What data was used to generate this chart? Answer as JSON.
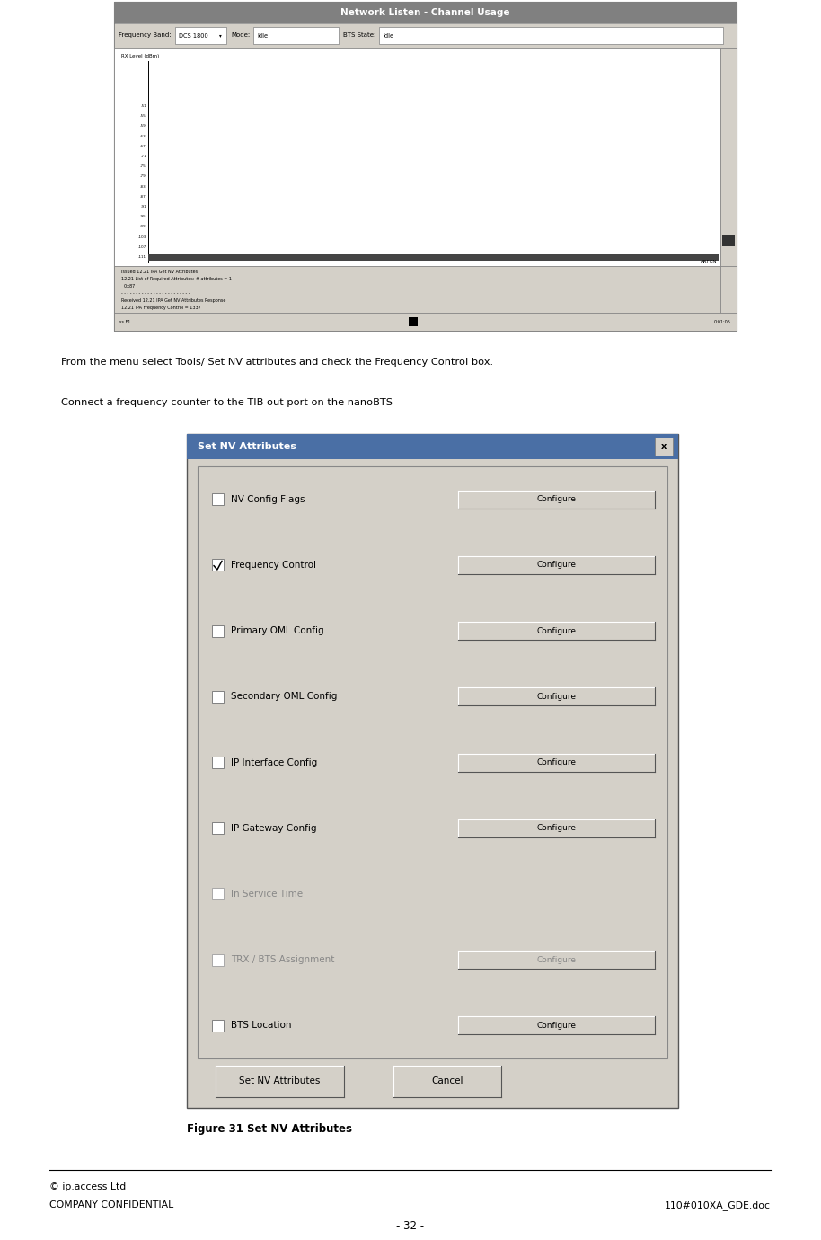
{
  "page_width": 9.14,
  "page_height": 13.8,
  "bg_color": "#ffffff",
  "para1": "From the menu select Tools/ Set NV attributes and check the Frequency Control box.",
  "para2": "Connect a frequency counter to the TIB out port on the nanoBTS",
  "figure_caption": "Figure 31 Set NV Attributes",
  "footer_left1": "© ip.access Ltd",
  "footer_left2": "COMPANY CONFIDENTIAL",
  "footer_right": "110#010XA_GDE.doc",
  "footer_center": "- 32 -",
  "dialog_title": "Set NV Attributes",
  "dialog_title_bg": "#4a6fa5",
  "dialog_title_fg": "#ffffff",
  "dialog_bg": "#d4d0c8",
  "checkboxes": [
    {
      "label": "NV Config Flags",
      "checked": false,
      "enabled": true,
      "has_button": true
    },
    {
      "label": "Frequency Control",
      "checked": true,
      "enabled": true,
      "has_button": true
    },
    {
      "label": "Primary OML Config",
      "checked": false,
      "enabled": true,
      "has_button": true
    },
    {
      "label": "Secondary OML Config",
      "checked": false,
      "enabled": true,
      "has_button": true
    },
    {
      "label": "IP Interface Config",
      "checked": false,
      "enabled": true,
      "has_button": true
    },
    {
      "label": "IP Gateway Config",
      "checked": false,
      "enabled": true,
      "has_button": true
    },
    {
      "label": "In Service Time",
      "checked": false,
      "enabled": false,
      "has_button": false
    },
    {
      "label": "TRX / BTS Assignment",
      "checked": false,
      "enabled": false,
      "has_button": true
    },
    {
      "label": "BTS Location",
      "checked": false,
      "enabled": true,
      "has_button": true
    }
  ],
  "bottom_buttons": [
    "Set NV Attributes",
    "Cancel"
  ],
  "network_listen_title": "Network Listen - Channel Usage",
  "freq_band_label": "Frequency Band:",
  "freq_band_val": "DCS 1800",
  "mode_label": "Mode:",
  "mode_val": "Idle",
  "bts_label": "BTS State:",
  "bts_val": "Idle",
  "rx_label": "RX Level (dBm)",
  "arfcn_label": "ARFCN",
  "y_ticks": [
    "-51",
    "-55",
    "-59",
    "-63",
    "-67",
    "-71",
    "-75",
    "-79",
    "-83",
    "-87",
    "-91",
    "-95",
    "-99",
    "-103",
    "-107",
    "-111"
  ],
  "log_text": "Issued 12.21 IPA Get NV Attributes\n12.21 List of Required Attributes: # attributes = 1\n  0x87\n- - - - - - - - - - - - - - - - - - - - - - - -\nReceived 12.21 IPA Get NV Attributes Response\n12.21 IPA Frequency Control = 1337",
  "status_left": "ss F1",
  "status_right": "0:01:05"
}
